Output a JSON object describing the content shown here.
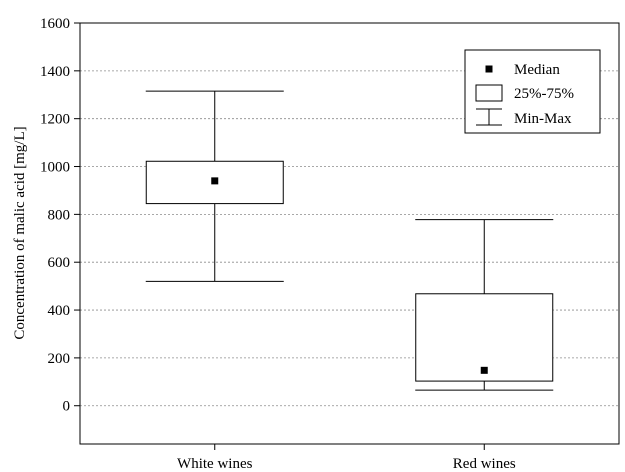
{
  "chart_data": {
    "type": "boxplot",
    "title": "",
    "xlabel": "",
    "ylabel": "Concentration of malic acid [mg/L]",
    "ylim": [
      -160,
      1600
    ],
    "yticks": [
      0,
      200,
      400,
      600,
      800,
      1000,
      1200,
      1400,
      1600
    ],
    "grid": "horizontal dashed",
    "categories": [
      "White wines",
      "Red wines"
    ],
    "series": [
      {
        "category": "White wines",
        "min": 520,
        "q1": 845,
        "median": 940,
        "q3": 1022,
        "max": 1315
      },
      {
        "category": "Red wines",
        "min": 65,
        "q1": 103,
        "median": 148,
        "q3": 468,
        "max": 778
      }
    ],
    "legend": {
      "position": "top-right",
      "entries": [
        {
          "marker": "square",
          "label": "Median"
        },
        {
          "marker": "box",
          "label": "25%-75%"
        },
        {
          "marker": "whisker",
          "label": "Min-Max"
        }
      ]
    },
    "colors": {
      "axis": "#000000",
      "grid": "#8c8c8c",
      "marker": "#000000",
      "box_fill": "#ffffff"
    }
  }
}
